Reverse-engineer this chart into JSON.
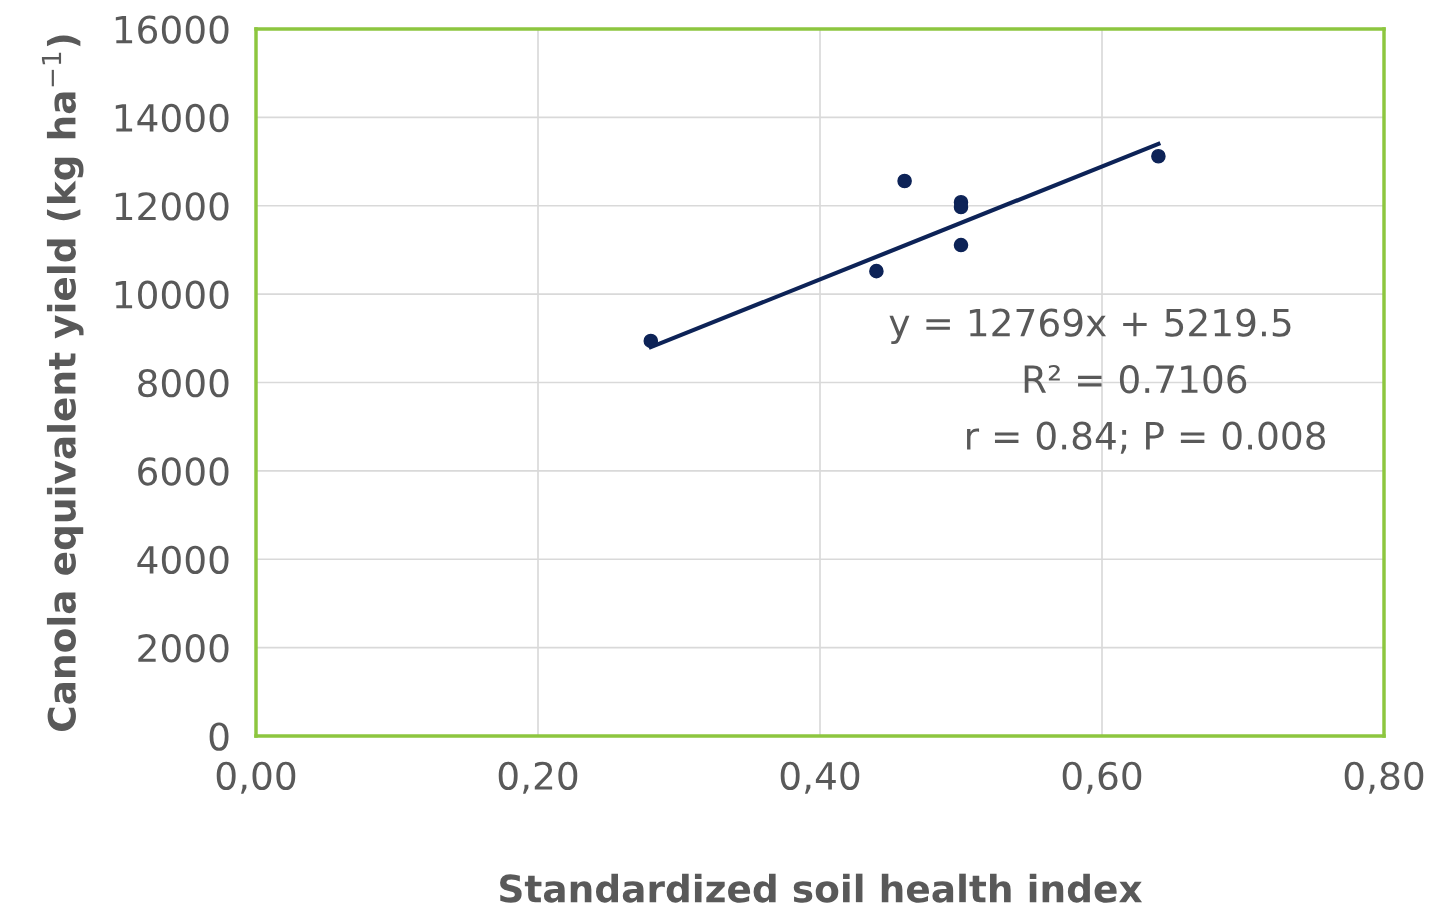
{
  "chart_data": {
    "type": "scatter",
    "xlabel": "Standardized soil health index",
    "ylabel": "Canola equivalent yield (kg ha$^{−1}$)",
    "xlim": [
      0,
      0.8
    ],
    "ylim": [
      0,
      16000
    ],
    "xticks": [
      {
        "value": 0,
        "label": "0,00"
      },
      {
        "value": 0.2,
        "label": "0,20"
      },
      {
        "value": 0.4,
        "label": "0,40"
      },
      {
        "value": 0.6,
        "label": "0,60"
      },
      {
        "value": 0.8,
        "label": "0,80"
      }
    ],
    "yticks": [
      0,
      2000,
      4000,
      6000,
      8000,
      10000,
      12000,
      14000,
      16000
    ],
    "grid": true,
    "series": [
      {
        "color": "#0d2357",
        "marker": "circle",
        "x": [
          0.28,
          0.44,
          0.46,
          0.5,
          0.5,
          0.5,
          0.64
        ],
        "values": [
          8940,
          10520,
          12560,
          12080,
          11970,
          11110,
          13120
        ]
      },
      {
        "type": "line",
        "color": "#0d2357",
        "x": [
          0.28,
          0.64
        ],
        "values": [
          8800,
          13400
        ]
      }
    ],
    "annotations": [
      "y = 12769x + 5219.5",
      "R² = 0.7106",
      "r = 0.84; P = 0.008"
    ]
  }
}
